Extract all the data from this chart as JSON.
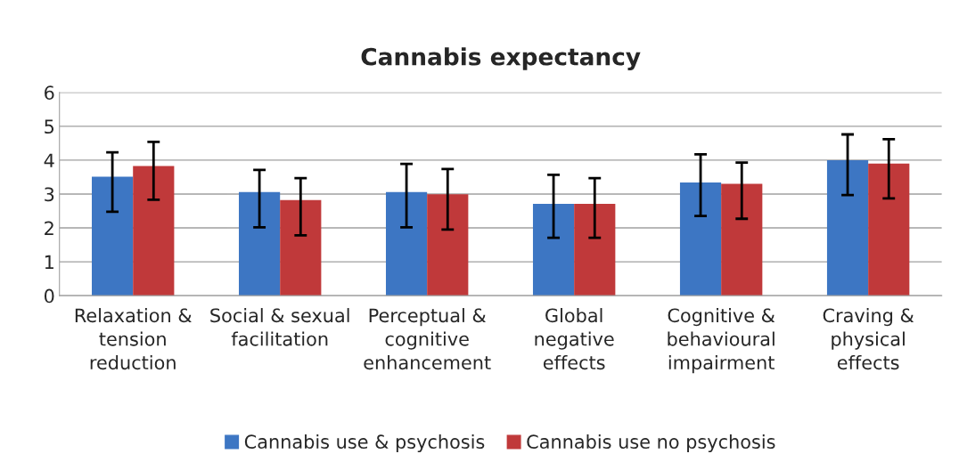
{
  "chart_data": {
    "type": "bar",
    "title": "Cannabis expectancy",
    "categories": [
      "Relaxation &\ntension\nreduction",
      "Social & sexual\nfacilitation",
      "Perceptual &\ncognitive\nenhancement",
      "Global\nnegative\neffects",
      "Cognitive &\nbehavioural\nimpairment",
      "Craving &\nphysical\neffects"
    ],
    "series": [
      {
        "name": "Cannabis use & psychosis",
        "color": "#3d76c3",
        "values": [
          3.51,
          3.06,
          3.06,
          2.71,
          3.34,
          4.0
        ],
        "errors": [
          [
            2.48,
            4.23
          ],
          [
            2.02,
            3.71
          ],
          [
            2.02,
            3.89
          ],
          [
            1.71,
            3.57
          ],
          [
            2.35,
            4.17
          ],
          [
            2.97,
            4.76
          ]
        ]
      },
      {
        "name": "Cannabis use no psychosis",
        "color": "#c0393a",
        "values": [
          3.83,
          2.82,
          2.99,
          2.71,
          3.3,
          3.9
        ],
        "errors": [
          [
            2.83,
            4.54
          ],
          [
            1.78,
            3.47
          ],
          [
            1.95,
            3.74
          ],
          [
            1.71,
            3.47
          ],
          [
            2.27,
            3.93
          ],
          [
            2.87,
            4.62
          ]
        ]
      }
    ],
    "ylim": [
      0,
      6
    ],
    "yticks": [
      0,
      1,
      2,
      3,
      4,
      5,
      6
    ],
    "grid": "y",
    "legend": "bottom"
  }
}
